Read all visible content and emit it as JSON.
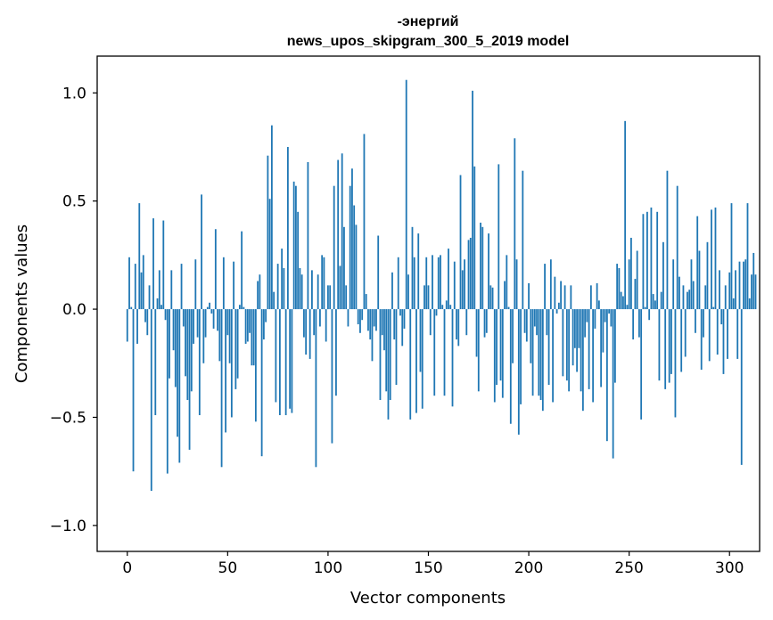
{
  "chart_data": {
    "type": "bar",
    "title_line1": "-энергий",
    "title_line2": "news_upos_skipgram_300_5_2019 model",
    "xlabel": "Vector components",
    "ylabel": "Components values",
    "xlim": [
      -15,
      315
    ],
    "ylim": [
      -1.12,
      1.17
    ],
    "xticks": [
      0,
      50,
      100,
      150,
      200,
      250,
      300
    ],
    "xtick_labels": [
      "0",
      "50",
      "100",
      "150",
      "200",
      "250",
      "300"
    ],
    "yticks": [
      -1.0,
      -0.5,
      0.0,
      0.5,
      1.0
    ],
    "ytick_labels": [
      "−1.0",
      "−0.5",
      "0.0",
      "0.5",
      "1.0"
    ],
    "bar_color": "#1f77b4",
    "values": [
      -0.15,
      0.24,
      0.01,
      -0.75,
      0.21,
      -0.16,
      0.49,
      0.17,
      0.25,
      -0.06,
      -0.12,
      0.11,
      -0.84,
      0.42,
      -0.49,
      0.05,
      0.18,
      0.02,
      0.41,
      -0.05,
      -0.76,
      -0.32,
      0.18,
      -0.19,
      -0.36,
      -0.59,
      -0.71,
      0.21,
      -0.08,
      -0.31,
      -0.42,
      -0.65,
      -0.38,
      -0.16,
      0.23,
      -0.13,
      -0.49,
      0.53,
      -0.25,
      -0.13,
      0.01,
      0.03,
      -0.02,
      -0.09,
      0.37,
      -0.1,
      -0.24,
      -0.73,
      0.24,
      -0.57,
      -0.12,
      -0.25,
      -0.5,
      0.22,
      -0.37,
      -0.32,
      0.02,
      0.36,
      0.01,
      -0.16,
      -0.15,
      -0.11,
      -0.26,
      -0.26,
      -0.52,
      0.13,
      0.16,
      -0.68,
      -0.14,
      -0.06,
      0.71,
      0.51,
      0.85,
      0.08,
      -0.43,
      0.21,
      -0.49,
      0.28,
      0.19,
      -0.49,
      0.75,
      -0.46,
      -0.48,
      0.59,
      0.57,
      0.45,
      0.19,
      0.16,
      -0.13,
      -0.21,
      0.68,
      -0.23,
      0.18,
      -0.12,
      -0.73,
      0.16,
      -0.08,
      0.25,
      0.24,
      -0.15,
      0.11,
      0.11,
      -0.62,
      0.57,
      -0.4,
      0.69,
      0.2,
      0.72,
      0.38,
      0.11,
      -0.08,
      0.57,
      0.65,
      0.48,
      0.39,
      -0.07,
      -0.11,
      -0.05,
      0.81,
      0.07,
      -0.1,
      -0.14,
      -0.24,
      -0.08,
      -0.1,
      0.34,
      -0.42,
      -0.12,
      -0.19,
      -0.38,
      -0.51,
      -0.42,
      0.17,
      -0.14,
      -0.35,
      0.24,
      -0.03,
      -0.17,
      -0.09,
      1.06,
      0.16,
      -0.51,
      0.38,
      0.24,
      -0.48,
      0.35,
      -0.29,
      -0.46,
      0.11,
      0.24,
      0.11,
      -0.12,
      0.25,
      -0.4,
      -0.03,
      0.24,
      0.25,
      0.02,
      -0.4,
      0.04,
      0.28,
      0.02,
      -0.45,
      0.22,
      -0.14,
      -0.17,
      0.62,
      0.18,
      0.23,
      -0.12,
      0.32,
      0.33,
      1.01,
      0.66,
      -0.22,
      -0.38,
      0.4,
      0.38,
      -0.13,
      -0.11,
      0.35,
      0.11,
      0.1,
      -0.43,
      -0.35,
      0.67,
      -0.33,
      -0.41,
      0.13,
      0.25,
      0.01,
      -0.53,
      -0.25,
      0.79,
      0.23,
      -0.58,
      -0.44,
      0.64,
      -0.11,
      -0.15,
      0.12,
      -0.25,
      -0.4,
      -0.08,
      -0.12,
      -0.4,
      -0.42,
      -0.47,
      0.21,
      -0.12,
      -0.35,
      0.23,
      -0.43,
      0.15,
      -0.02,
      0.03,
      0.13,
      -0.31,
      0.11,
      -0.33,
      -0.38,
      0.11,
      -0.26,
      -0.18,
      -0.29,
      -0.18,
      -0.38,
      -0.47,
      -0.13,
      -0.06,
      -0.37,
      0.11,
      -0.43,
      -0.09,
      0.12,
      0.04,
      -0.36,
      -0.2,
      -0.06,
      -0.61,
      -0.02,
      -0.08,
      -0.69,
      -0.34,
      0.21,
      0.19,
      0.08,
      0.06,
      0.87,
      0.02,
      0.23,
      0.33,
      -0.14,
      0.14,
      0.27,
      -0.13,
      -0.51,
      0.44,
      0.01,
      0.45,
      -0.05,
      0.47,
      0.07,
      0.04,
      0.45,
      -0.33,
      0.08,
      0.31,
      -0.37,
      0.64,
      -0.34,
      -0.3,
      0.23,
      -0.5,
      0.57,
      0.15,
      -0.29,
      0.11,
      -0.22,
      0.08,
      0.09,
      0.23,
      0.13,
      -0.11,
      0.43,
      0.27,
      -0.28,
      -0.13,
      0.11,
      0.31,
      -0.24,
      0.46,
      0.01,
      0.47,
      -0.21,
      0.18,
      -0.07,
      -0.3,
      0.11,
      -0.23,
      0.17,
      0.49,
      0.05,
      0.18,
      -0.23,
      0.22,
      -0.72,
      0.22,
      0.23,
      0.49,
      0.05,
      0.16,
      0.26,
      0.16
    ]
  }
}
